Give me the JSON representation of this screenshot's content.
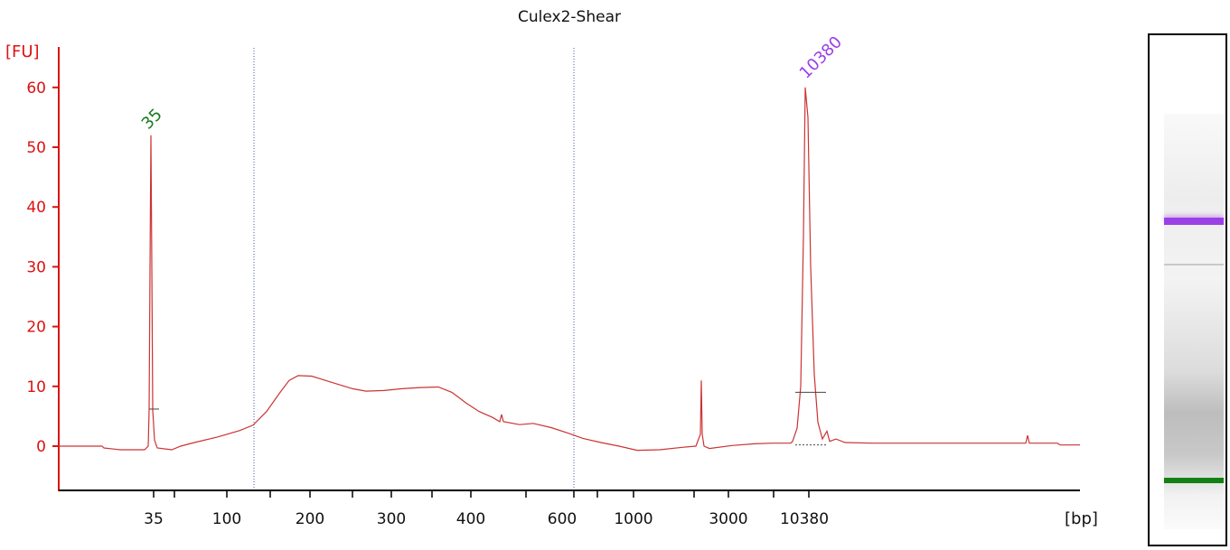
{
  "chart_data": {
    "type": "line",
    "title": "Culex2-Shear",
    "ylabel": "[FU]",
    "xlabel": "[bp]",
    "ylim": [
      -7,
      67
    ],
    "yticks": [
      0,
      10,
      20,
      30,
      40,
      50,
      60
    ],
    "xticks": [
      "35",
      "100",
      "200",
      "300",
      "400",
      "600",
      "1000",
      "3000",
      "10380"
    ],
    "peak_labels": [
      {
        "text": "35",
        "color": "#1a7a1a"
      },
      {
        "text": "10380",
        "color": "#9a3fe6"
      }
    ],
    "series": [
      {
        "color": "#cc3333",
        "points": [
          [
            0,
            0
          ],
          [
            48,
            0
          ],
          [
            50,
            -0.3
          ],
          [
            68,
            -0.6
          ],
          [
            95,
            -0.6
          ],
          [
            99,
            0
          ],
          [
            100,
            6
          ],
          [
            101,
            30
          ],
          [
            102,
            52
          ],
          [
            103,
            30
          ],
          [
            104,
            6
          ],
          [
            106,
            1
          ],
          [
            109,
            -0.3
          ],
          [
            125,
            -0.6
          ],
          [
            135,
            0
          ],
          [
            150,
            0.6
          ],
          [
            175,
            1.5
          ],
          [
            200,
            2.6
          ],
          [
            215,
            3.5
          ],
          [
            230,
            5.8
          ],
          [
            245,
            9
          ],
          [
            255,
            11
          ],
          [
            265,
            11.8
          ],
          [
            280,
            11.7
          ],
          [
            295,
            11
          ],
          [
            310,
            10.3
          ],
          [
            325,
            9.6
          ],
          [
            340,
            9.2
          ],
          [
            360,
            9.3
          ],
          [
            380,
            9.6
          ],
          [
            400,
            9.8
          ],
          [
            420,
            9.9
          ],
          [
            435,
            9
          ],
          [
            450,
            7.3
          ],
          [
            465,
            5.8
          ],
          [
            480,
            4.8
          ],
          [
            488,
            4.1
          ],
          [
            490,
            5.3
          ],
          [
            492,
            4.1
          ],
          [
            510,
            3.6
          ],
          [
            525,
            3.8
          ],
          [
            545,
            3.1
          ],
          [
            565,
            2.1
          ],
          [
            580,
            1.3
          ],
          [
            600,
            0.6
          ],
          [
            620,
            0
          ],
          [
            640,
            -0.7
          ],
          [
            665,
            -0.6
          ],
          [
            690,
            -0.2
          ],
          [
            705,
            0
          ],
          [
            710,
            2
          ],
          [
            711,
            11
          ],
          [
            712,
            2
          ],
          [
            714,
            0
          ],
          [
            720,
            -0.4
          ],
          [
            745,
            0.1
          ],
          [
            770,
            0.4
          ],
          [
            790,
            0.5
          ],
          [
            810,
            0.5
          ],
          [
            812,
            0.8
          ],
          [
            817,
            3
          ],
          [
            821,
            10
          ],
          [
            824,
            35
          ],
          [
            826,
            60
          ],
          [
            829,
            55
          ],
          [
            832,
            30
          ],
          [
            836,
            12
          ],
          [
            840,
            4
          ],
          [
            845,
            1.2
          ],
          [
            850,
            2.5
          ],
          [
            853,
            0.8
          ],
          [
            860,
            1.2
          ],
          [
            870,
            0.6
          ],
          [
            900,
            0.5
          ],
          [
            950,
            0.5
          ],
          [
            1000,
            0.5
          ],
          [
            1050,
            0.5
          ],
          [
            1070,
            0.5
          ],
          [
            1072,
            1.8
          ],
          [
            1074,
            0.5
          ],
          [
            1090,
            0.5
          ],
          [
            1105,
            0.5
          ],
          [
            1108,
            0.2
          ],
          [
            1130,
            0.2
          ]
        ]
      }
    ]
  },
  "gel": {
    "ladder_colors": {
      "upper_marker": "#9a3fe6",
      "lower_marker": "#128012"
    }
  }
}
